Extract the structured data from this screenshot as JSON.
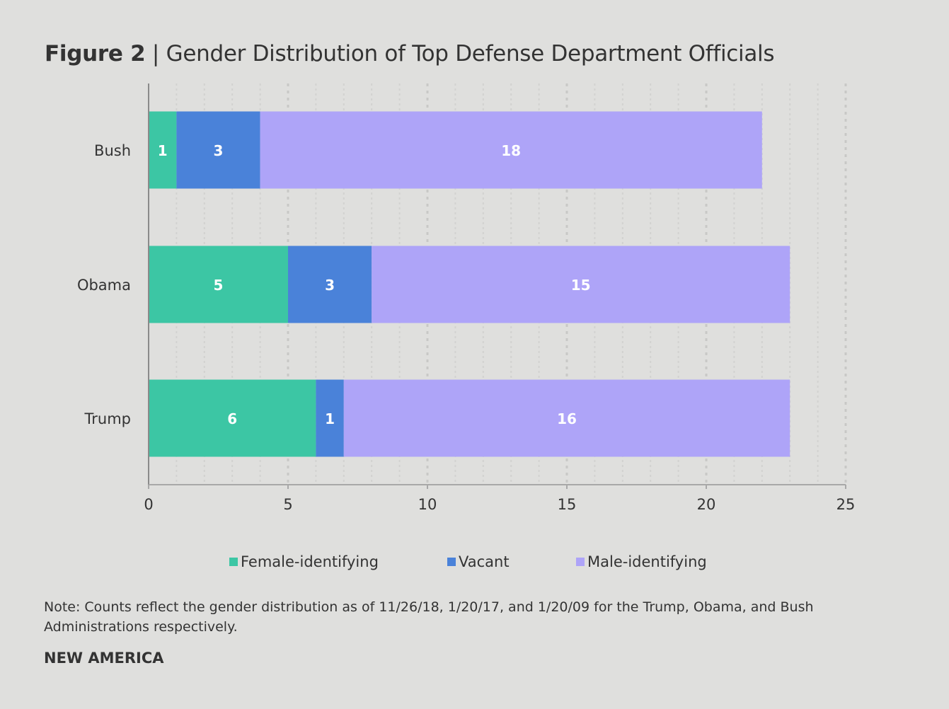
{
  "title": {
    "figure": "Figure 2",
    "separator": "|",
    "text": "Gender Distribution of Top Defense Department Officials"
  },
  "note": "Note: Counts reflect the gender distribution as of 11/26/18, 1/20/17, and 1/20/09 for the Trump, Obama, and Bush Administrations respectively.",
  "brand": "NEW AMERICA",
  "chart_data": {
    "type": "bar",
    "orientation": "horizontal",
    "stacked": true,
    "categories": [
      "Bush",
      "Obama",
      "Trump"
    ],
    "series": [
      {
        "name": "Female-identifying",
        "color": "#3cc6a4",
        "values": [
          1,
          5,
          6
        ]
      },
      {
        "name": "Vacant",
        "color": "#4a82d9",
        "values": [
          3,
          3,
          1
        ]
      },
      {
        "name": "Male-identifying",
        "color": "#aea4f8",
        "values": [
          18,
          15,
          16
        ]
      }
    ],
    "xlim": [
      0,
      25
    ],
    "xticks": [
      "0",
      "5",
      "10",
      "15",
      "20",
      "25"
    ],
    "grid": true,
    "legend": "bottom",
    "data_labels": true
  }
}
